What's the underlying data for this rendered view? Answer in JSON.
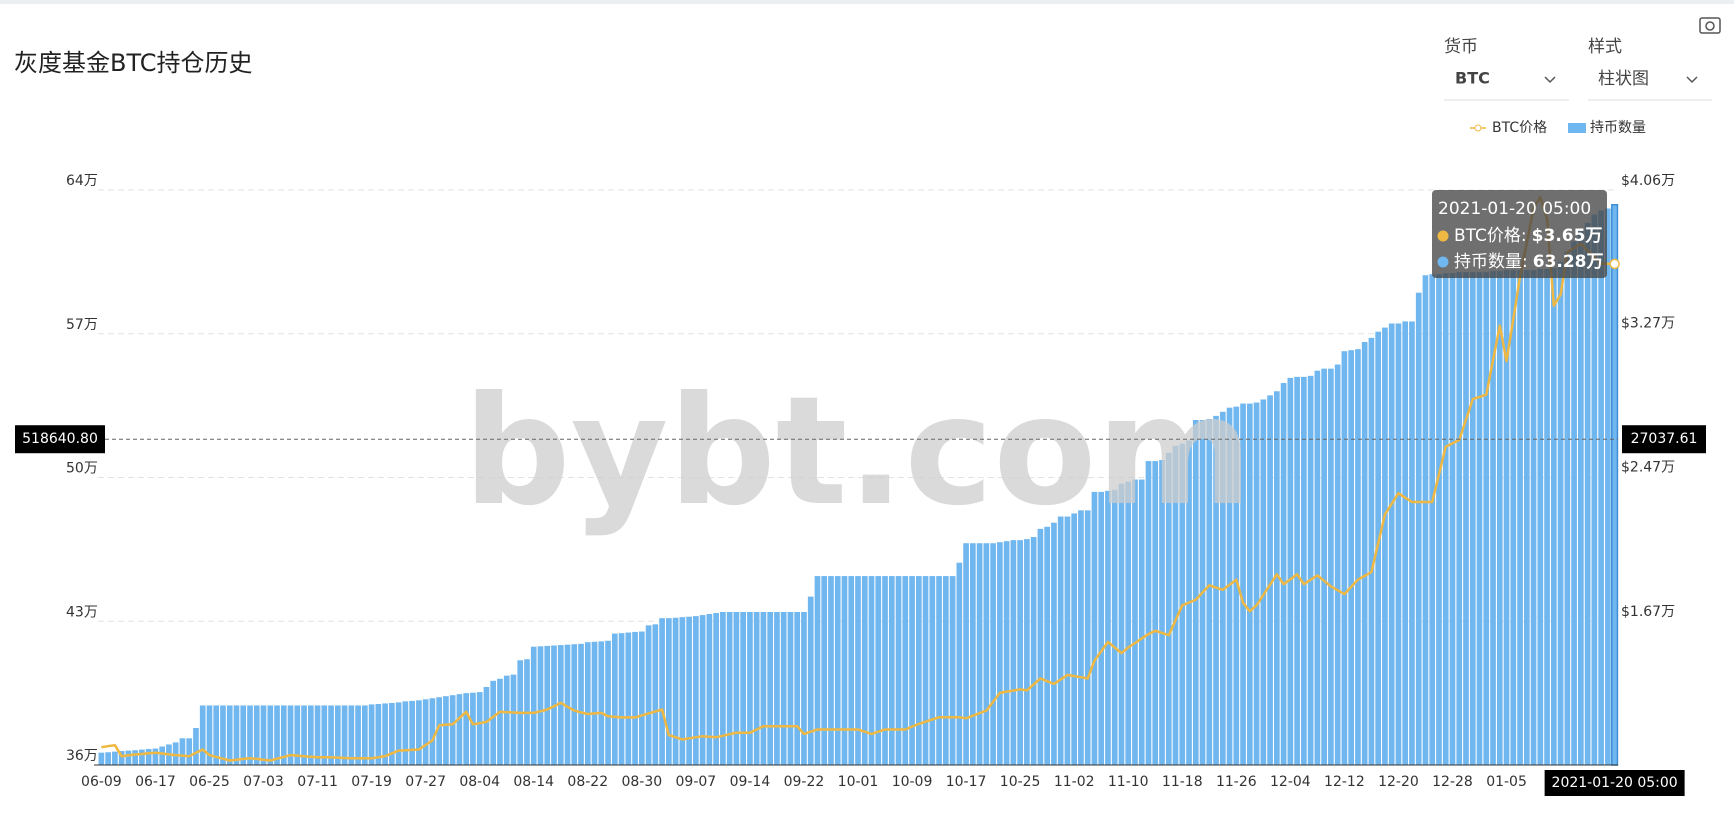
{
  "header": {
    "title": "灰度基金BTC持仓历史",
    "controls": [
      {
        "label": "货币",
        "value": "BTC"
      },
      {
        "label": "样式",
        "value": "柱状图"
      }
    ]
  },
  "chart_data": {
    "type": "bar",
    "watermark": "bybt.com",
    "grid": true,
    "categories": [
      "06-09",
      null,
      null,
      null,
      null,
      null,
      null,
      null,
      "06-17",
      null,
      null,
      null,
      null,
      null,
      null,
      null,
      "06-25",
      null,
      null,
      null,
      null,
      null,
      null,
      null,
      "07-03",
      null,
      null,
      null,
      null,
      null,
      null,
      null,
      "07-11",
      null,
      null,
      null,
      null,
      null,
      null,
      null,
      "07-19",
      null,
      null,
      null,
      null,
      null,
      null,
      null,
      "07-27",
      null,
      null,
      null,
      null,
      null,
      null,
      null,
      "08-04",
      null,
      null,
      null,
      null,
      null,
      null,
      null,
      "08-14",
      null,
      null,
      null,
      null,
      null,
      null,
      null,
      "08-22",
      null,
      null,
      null,
      null,
      null,
      null,
      null,
      "08-30",
      null,
      null,
      null,
      null,
      null,
      null,
      null,
      "09-07",
      null,
      null,
      null,
      null,
      null,
      null,
      null,
      "09-14",
      null,
      null,
      null,
      null,
      null,
      null,
      null,
      "09-22",
      null,
      null,
      null,
      null,
      null,
      null,
      null,
      "10-01",
      null,
      null,
      null,
      null,
      null,
      null,
      null,
      "10-09",
      null,
      null,
      null,
      null,
      null,
      null,
      null,
      "10-17",
      null,
      null,
      null,
      null,
      null,
      null,
      null,
      "10-25",
      null,
      null,
      null,
      null,
      null,
      null,
      null,
      "11-02",
      null,
      null,
      null,
      null,
      null,
      null,
      null,
      "11-10",
      null,
      null,
      null,
      null,
      null,
      null,
      null,
      "11-18",
      null,
      null,
      null,
      null,
      null,
      null,
      null,
      "11-26",
      null,
      null,
      null,
      null,
      null,
      null,
      null,
      "12-04",
      null,
      null,
      null,
      null,
      null,
      null,
      null,
      "12-12",
      null,
      null,
      null,
      null,
      null,
      null,
      null,
      "12-20",
      null,
      null,
      null,
      null,
      null,
      null,
      null,
      "12-28",
      null,
      null,
      null,
      null,
      null,
      null,
      null,
      "01-05",
      null,
      null,
      null,
      null,
      null,
      null,
      null,
      null,
      null,
      null,
      null,
      null,
      null,
      null,
      null,
      "2021-01-20 05:00"
    ],
    "series": [
      {
        "name": "BTC价格",
        "type": "line",
        "axis": "y2",
        "color": "#efb843",
        "values": [
          9685,
          9750,
          9800,
          9190,
          9240,
          9280,
          9310,
          9350,
          9380,
          9340,
          9290,
          9250,
          9220,
          9190,
          9380,
          9560,
          9250,
          9150,
          9050,
          8950,
          8990,
          9040,
          9080,
          9040,
          8990,
          8950,
          9050,
          9150,
          9250,
          9220,
          9190,
          9160,
          9130,
          9130,
          9130,
          9110,
          9090,
          9070,
          9070,
          9070,
          9070,
          9130,
          9190,
          9350,
          9500,
          9520,
          9540,
          9560,
          9810,
          10060,
          10900,
          10930,
          10960,
          11300,
          11650,
          10960,
          11020,
          11090,
          11370,
          11650,
          11630,
          11610,
          11590,
          11590,
          11590,
          11680,
          11780,
          11960,
          12150,
          11930,
          11720,
          11620,
          11530,
          11560,
          11590,
          11400,
          11370,
          11340,
          11340,
          11340,
          11450,
          11560,
          11670,
          11780,
          10360,
          10240,
          10115,
          10180,
          10240,
          10300,
          10270,
          10240,
          10320,
          10410,
          10490,
          10490,
          10490,
          10670,
          10850,
          10850,
          10850,
          10850,
          10850,
          10850,
          10420,
          10550,
          10670,
          10670,
          10670,
          10670,
          10670,
          10670,
          10670,
          10550,
          10420,
          10550,
          10670,
          10670,
          10670,
          10670,
          10830,
          10980,
          11100,
          11230,
          11350,
          11350,
          11350,
          11350,
          11290,
          11430,
          11580,
          11720,
          12200,
          12700,
          12770,
          12830,
          12900,
          12840,
          13170,
          13500,
          13350,
          13200,
          13450,
          13700,
          13630,
          13570,
          13500,
          14480,
          15000,
          15530,
          15220,
          14910,
          15220,
          15470,
          15720,
          15960,
          16150,
          16030,
          15900,
          16730,
          17560,
          17710,
          17870,
          18270,
          18670,
          18540,
          18420,
          18700,
          18980,
          17700,
          17230,
          17560,
          18130,
          18710,
          19280,
          18730,
          19000,
          19280,
          18730,
          18980,
          19220,
          18920,
          18610,
          18400,
          18180,
          18580,
          18980,
          19190,
          19400,
          21000,
          22600,
          23190,
          23780,
          23530,
          23290,
          23290,
          23290,
          23290,
          24830,
          26360,
          26550,
          26730,
          27860,
          29000,
          29120,
          29250,
          31160,
          33070,
          31100,
          33440,
          35780,
          37690,
          39600,
          40200,
          39000,
          34180,
          34800,
          37130,
          37380,
          37620,
          37250,
          36880,
          36515,
          36510,
          36500
        ]
      },
      {
        "name": "持币数量",
        "type": "bar",
        "color": "#70b6ef",
        "values": [
          366000,
          366200,
          366500,
          366800,
          367000,
          367200,
          367500,
          367800,
          368000,
          369000,
          370000,
          371000,
          373000,
          373000,
          378000,
          389000,
          389000,
          389000,
          389000,
          389000,
          389000,
          389000,
          389000,
          389000,
          389000,
          389000,
          389000,
          389000,
          389000,
          389000,
          389000,
          389000,
          389000,
          389000,
          389000,
          389000,
          389000,
          389000,
          389000,
          389000,
          389500,
          389700,
          390000,
          390200,
          390500,
          391000,
          391200,
          391500,
          392000,
          392500,
          393000,
          393500,
          394000,
          394500,
          395000,
          395200,
          395500,
          398000,
          401000,
          402000,
          403500,
          404000,
          411000,
          411500,
          417600,
          417800,
          418000,
          418200,
          418400,
          418600,
          418800,
          419000,
          419800,
          420000,
          420200,
          420500,
          424000,
          424200,
          424500,
          424800,
          425000,
          428000,
          428500,
          431500,
          431500,
          431700,
          432000,
          432200,
          432500,
          433000,
          433500,
          434000,
          434500,
          434500,
          434500,
          434500,
          434500,
          434500,
          434500,
          434500,
          434500,
          434500,
          434500,
          434500,
          434500,
          442000,
          452000,
          452000,
          452000,
          452000,
          452000,
          452000,
          452000,
          452000,
          452000,
          452000,
          452000,
          452000,
          452000,
          452000,
          452000,
          452000,
          452000,
          452000,
          452000,
          452000,
          452000,
          458500,
          468000,
          468000,
          468000,
          468000,
          468000,
          468500,
          469000,
          469500,
          469500,
          470000,
          471000,
          475000,
          476000,
          478000,
          481000,
          481000,
          482500,
          484000,
          484000,
          493000,
          493000,
          493500,
          494000,
          497000,
          498000,
          499000,
          499000,
          508000,
          508000,
          508500,
          512000,
          515500,
          516500,
          518000,
          528000,
          528000,
          528500,
          530000,
          532000,
          534000,
          534500,
          536000,
          536000,
          536500,
          538000,
          540000,
          542000,
          546000,
          548500,
          549000,
          549000,
          549500,
          552000,
          553000,
          553000,
          555000,
          561500,
          562000,
          562500,
          566000,
          568000,
          571000,
          573000,
          575000,
          575000,
          576000,
          576000,
          590000,
          598500,
          599000,
          599000,
          599500,
          599500,
          600000,
          600000,
          600000,
          600000,
          600000,
          600500,
          600500,
          601000,
          601000,
          601000,
          601000,
          601000,
          601500,
          601500,
          602000,
          605000,
          610000,
          615000,
          620000,
          624000,
          628000,
          630000,
          631000,
          632800
        ]
      }
    ],
    "ylim": [
      360000,
      640000
    ],
    "yticks": [
      {
        "value": 360000,
        "label": "36万"
      },
      {
        "value": 430000,
        "label": "43万"
      },
      {
        "value": 500000,
        "label": "50万"
      },
      {
        "value": 570000,
        "label": "57万"
      },
      {
        "value": 640000,
        "label": "64万"
      }
    ],
    "y2lim": [
      8700,
      40600
    ],
    "y2ticks": [
      {
        "value": 16700,
        "label": "$1.67万"
      },
      {
        "value": 24700,
        "label": "$2.47万"
      },
      {
        "value": 32700,
        "label": "$3.27万"
      },
      {
        "value": 40600,
        "label": "$4.06万"
      }
    ],
    "pointer": {
      "y": {
        "value": 518640.8,
        "label": "518640.80"
      },
      "y2": 27037.61
    },
    "tooltip": {
      "title": "2021-01-20 05:00",
      "items": [
        {
          "name": "BTC价格:",
          "value": 36500,
          "label": "$3.65万"
        },
        {
          "name": "持币数量:",
          "value": 632800,
          "label": "63.28万"
        }
      ]
    }
  }
}
